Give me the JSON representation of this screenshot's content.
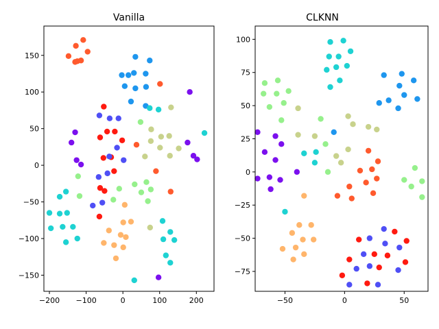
{
  "chart_data": [
    {
      "type": "scatter",
      "title": "Vanilla",
      "xlabel": "",
      "ylabel": "",
      "xlim": [
        -215,
        248
      ],
      "ylim": [
        -172,
        190
      ],
      "x_ticks": [
        -200,
        -100,
        0,
        100,
        200
      ],
      "y_ticks": [
        -150,
        -100,
        -50,
        0,
        50,
        100,
        150
      ],
      "x_tick_labels": [
        "−200",
        "−100",
        "0",
        "100",
        "200"
      ],
      "y_tick_labels": [
        "−150",
        "−100",
        "−50",
        "0",
        "50",
        "100",
        "150"
      ],
      "grid": false,
      "points": [
        {
          "x": -124,
          "y": 142,
          "color": "#ff5a2d"
        },
        {
          "x": -108,
          "y": 171,
          "color": "#ff5a2d"
        },
        {
          "x": -128,
          "y": 163,
          "color": "#ff5a2d"
        },
        {
          "x": -148,
          "y": 149,
          "color": "#ff5a2d"
        },
        {
          "x": -130,
          "y": 141,
          "color": "#ff5a2d"
        },
        {
          "x": -114,
          "y": 143,
          "color": "#ff5a2d"
        },
        {
          "x": -96,
          "y": 155,
          "color": "#ff5a2d"
        },
        {
          "x": 101,
          "y": 111,
          "color": "#ff5a2d"
        },
        {
          "x": 130,
          "y": -36,
          "color": "#ff5a2d"
        },
        {
          "x": 90,
          "y": -8,
          "color": "#ff5a2d"
        },
        {
          "x": 37,
          "y": 28,
          "color": "#ff5a2d"
        },
        {
          "x": 34,
          "y": 148,
          "color": "#1e96ee"
        },
        {
          "x": 73,
          "y": 143,
          "color": "#1e96ee"
        },
        {
          "x": 30,
          "y": 126,
          "color": "#1e96ee"
        },
        {
          "x": 15,
          "y": 123,
          "color": "#1e96ee"
        },
        {
          "x": -3,
          "y": 123,
          "color": "#1e96ee"
        },
        {
          "x": 62,
          "y": 125,
          "color": "#1e96ee"
        },
        {
          "x": 5,
          "y": 108,
          "color": "#1e96ee"
        },
        {
          "x": 34,
          "y": 105,
          "color": "#1e96ee"
        },
        {
          "x": 63,
          "y": 107,
          "color": "#1e96ee"
        },
        {
          "x": 22,
          "y": 87,
          "color": "#1e96ee"
        },
        {
          "x": 62,
          "y": 81,
          "color": "#1e96ee"
        },
        {
          "x": -52,
          "y": 80,
          "color": "#ff1a10"
        },
        {
          "x": -43,
          "y": 46,
          "color": "#ff1a10"
        },
        {
          "x": -22,
          "y": 46,
          "color": "#ff1a10"
        },
        {
          "x": -62,
          "y": 38,
          "color": "#ff1a10"
        },
        {
          "x": -2,
          "y": 34,
          "color": "#ff1a10"
        },
        {
          "x": -53,
          "y": 10,
          "color": "#ff1a10"
        },
        {
          "x": -32,
          "y": 11,
          "color": "#ff1a10"
        },
        {
          "x": -24,
          "y": -8,
          "color": "#ff1a10"
        },
        {
          "x": -62,
          "y": -31,
          "color": "#ff1a10"
        },
        {
          "x": -50,
          "y": -35,
          "color": "#ff1a10"
        },
        {
          "x": -64,
          "y": -70,
          "color": "#ff1a10"
        },
        {
          "x": -130,
          "y": 45,
          "color": "#7b10ee"
        },
        {
          "x": -140,
          "y": 31,
          "color": "#7b10ee"
        },
        {
          "x": -126,
          "y": 7,
          "color": "#7b10ee"
        },
        {
          "x": -114,
          "y": 1,
          "color": "#7b10ee"
        },
        {
          "x": 182,
          "y": 100,
          "color": "#7b10ee"
        },
        {
          "x": 176,
          "y": 31,
          "color": "#7b10ee"
        },
        {
          "x": 192,
          "y": 13,
          "color": "#7b10ee"
        },
        {
          "x": 202,
          "y": 8,
          "color": "#7b10ee"
        },
        {
          "x": 97,
          "y": -153,
          "color": "#7b10ee"
        },
        {
          "x": -64,
          "y": 68,
          "color": "#4f4ff5"
        },
        {
          "x": -36,
          "y": 64,
          "color": "#4f4ff5"
        },
        {
          "x": -12,
          "y": 64,
          "color": "#4f4ff5"
        },
        {
          "x": -16,
          "y": 24,
          "color": "#4f4ff5"
        },
        {
          "x": -37,
          "y": 12,
          "color": "#4f4ff5"
        },
        {
          "x": 2,
          "y": 7,
          "color": "#4f4ff5"
        },
        {
          "x": -42,
          "y": -11,
          "color": "#4f4ff5"
        },
        {
          "x": -66,
          "y": -16,
          "color": "#4f4ff5"
        },
        {
          "x": -56,
          "y": -51,
          "color": "#4f4ff5"
        },
        {
          "x": -82,
          "y": -55,
          "color": "#4f4ff5"
        },
        {
          "x": -200,
          "y": -65,
          "color": "#1ed2d2"
        },
        {
          "x": -172,
          "y": -43,
          "color": "#1ed2d2"
        },
        {
          "x": -155,
          "y": -36,
          "color": "#1ed2d2"
        },
        {
          "x": -172,
          "y": -66,
          "color": "#1ed2d2"
        },
        {
          "x": -152,
          "y": -65,
          "color": "#1ed2d2"
        },
        {
          "x": -196,
          "y": -86,
          "color": "#1ed2d2"
        },
        {
          "x": -164,
          "y": -84,
          "color": "#1ed2d2"
        },
        {
          "x": -136,
          "y": -84,
          "color": "#1ed2d2"
        },
        {
          "x": -124,
          "y": -100,
          "color": "#1ed2d2"
        },
        {
          "x": -155,
          "y": -105,
          "color": "#1ed2d2"
        },
        {
          "x": 73,
          "y": 78,
          "color": "#1ed2d2"
        },
        {
          "x": 97,
          "y": 76,
          "color": "#1ed2d2"
        },
        {
          "x": 222,
          "y": 44,
          "color": "#1ed2d2"
        },
        {
          "x": 108,
          "y": -76,
          "color": "#1ed2d2"
        },
        {
          "x": 129,
          "y": -91,
          "color": "#1ed2d2"
        },
        {
          "x": 110,
          "y": -101,
          "color": "#1ed2d2"
        },
        {
          "x": 140,
          "y": -102,
          "color": "#1ed2d2"
        },
        {
          "x": 117,
          "y": -123,
          "color": "#1ed2d2"
        },
        {
          "x": 129,
          "y": -133,
          "color": "#1ed2d2"
        },
        {
          "x": 31,
          "y": -157,
          "color": "#1ed2d2"
        },
        {
          "x": -122,
          "y": -15,
          "color": "#96f08c"
        },
        {
          "x": -118,
          "y": -42,
          "color": "#96f08c"
        },
        {
          "x": -26,
          "y": -47,
          "color": "#96f08c"
        },
        {
          "x": -10,
          "y": -32,
          "color": "#96f08c"
        },
        {
          "x": 48,
          "y": 59,
          "color": "#96f08c"
        },
        {
          "x": 32,
          "y": -26,
          "color": "#96f08c"
        },
        {
          "x": 64,
          "y": -23,
          "color": "#96f08c"
        },
        {
          "x": 50,
          "y": -37,
          "color": "#96f08c"
        },
        {
          "x": 76,
          "y": -33,
          "color": "#96f08c"
        },
        {
          "x": 68,
          "y": -49,
          "color": "#96f08c"
        },
        {
          "x": 131,
          "y": 79,
          "color": "#c8d28c"
        },
        {
          "x": 77,
          "y": 49,
          "color": "#c8d28c"
        },
        {
          "x": 104,
          "y": 39,
          "color": "#c8d28c"
        },
        {
          "x": 126,
          "y": 40,
          "color": "#c8d28c"
        },
        {
          "x": 76,
          "y": 33,
          "color": "#c8d28c"
        },
        {
          "x": 101,
          "y": 24,
          "color": "#c8d28c"
        },
        {
          "x": 152,
          "y": 23,
          "color": "#c8d28c"
        },
        {
          "x": 60,
          "y": 12,
          "color": "#c8d28c"
        },
        {
          "x": 128,
          "y": 13,
          "color": "#c8d28c"
        },
        {
          "x": 74,
          "y": -85,
          "color": "#c8d28c"
        },
        {
          "x": 5,
          "y": -54,
          "color": "#ffb56b"
        },
        {
          "x": 1,
          "y": -78,
          "color": "#ffb56b"
        },
        {
          "x": 22,
          "y": -77,
          "color": "#ffb56b"
        },
        {
          "x": -38,
          "y": -89,
          "color": "#ffb56b"
        },
        {
          "x": -6,
          "y": -95,
          "color": "#ffb56b"
        },
        {
          "x": 8,
          "y": -98,
          "color": "#ffb56b"
        },
        {
          "x": -52,
          "y": -106,
          "color": "#ffb56b"
        },
        {
          "x": -24,
          "y": -109,
          "color": "#ffb56b"
        },
        {
          "x": 1,
          "y": -112,
          "color": "#ffb56b"
        },
        {
          "x": -19,
          "y": -127,
          "color": "#ffb56b"
        }
      ]
    },
    {
      "type": "scatter",
      "title": "CLKNN",
      "xlabel": "",
      "ylabel": "",
      "xlim": [
        -75,
        70
      ],
      "ylim": [
        -90,
        110
      ],
      "x_ticks": [
        -50,
        0,
        50
      ],
      "y_ticks": [
        -75,
        -50,
        -25,
        0,
        25,
        50,
        75,
        100
      ],
      "x_tick_labels": [
        "−50",
        "0",
        "50"
      ],
      "y_tick_labels": [
        "−75",
        "−50",
        "−25",
        "0",
        "25",
        "50",
        "75",
        "100"
      ],
      "grid": false,
      "points": [
        {
          "x": -12,
          "y": 98,
          "color": "#1ed2d2"
        },
        {
          "x": -1,
          "y": 99,
          "color": "#1ed2d2"
        },
        {
          "x": 5,
          "y": 91,
          "color": "#1ed2d2"
        },
        {
          "x": -13,
          "y": 87,
          "color": "#1ed2d2"
        },
        {
          "x": -5,
          "y": 87,
          "color": "#1ed2d2"
        },
        {
          "x": -7,
          "y": 79,
          "color": "#1ed2d2"
        },
        {
          "x": 2,
          "y": 80,
          "color": "#1ed2d2"
        },
        {
          "x": -15,
          "y": 77,
          "color": "#1ed2d2"
        },
        {
          "x": -4,
          "y": 69,
          "color": "#1ed2d2"
        },
        {
          "x": -12,
          "y": 64,
          "color": "#1ed2d2"
        },
        {
          "x": -25,
          "y": 7,
          "color": "#1ed2d2"
        },
        {
          "x": -24,
          "y": 15,
          "color": "#1ed2d2"
        },
        {
          "x": -34,
          "y": 14,
          "color": "#1ed2d2"
        },
        {
          "x": -50,
          "y": -30,
          "color": "#1ed2d2"
        },
        {
          "x": 33,
          "y": 73,
          "color": "#1e96ee"
        },
        {
          "x": 48,
          "y": 74,
          "color": "#1e96ee"
        },
        {
          "x": 58,
          "y": 69,
          "color": "#1e96ee"
        },
        {
          "x": 46,
          "y": 65,
          "color": "#1e96ee"
        },
        {
          "x": 50,
          "y": 58,
          "color": "#1e96ee"
        },
        {
          "x": 37,
          "y": 54,
          "color": "#1e96ee"
        },
        {
          "x": 61,
          "y": 55,
          "color": "#1e96ee"
        },
        {
          "x": 29,
          "y": 52,
          "color": "#1e96ee"
        },
        {
          "x": 45,
          "y": 48,
          "color": "#1e96ee"
        },
        {
          "x": -9,
          "y": 30,
          "color": "#1e96ee"
        },
        {
          "x": -67,
          "y": 67,
          "color": "#96f08c"
        },
        {
          "x": -56,
          "y": 69,
          "color": "#96f08c"
        },
        {
          "x": -68,
          "y": 59,
          "color": "#96f08c"
        },
        {
          "x": -57,
          "y": 59,
          "color": "#96f08c"
        },
        {
          "x": -47,
          "y": 61,
          "color": "#96f08c"
        },
        {
          "x": -51,
          "y": 52,
          "color": "#96f08c"
        },
        {
          "x": -63,
          "y": 49,
          "color": "#96f08c"
        },
        {
          "x": -20,
          "y": 40,
          "color": "#96f08c"
        },
        {
          "x": -53,
          "y": 39,
          "color": "#96f08c"
        },
        {
          "x": -16,
          "y": 21,
          "color": "#96f08c"
        },
        {
          "x": -14,
          "y": 0,
          "color": "#96f08c"
        },
        {
          "x": 59,
          "y": 3,
          "color": "#96f08c"
        },
        {
          "x": 50,
          "y": -6,
          "color": "#96f08c"
        },
        {
          "x": 65,
          "y": -7,
          "color": "#96f08c"
        },
        {
          "x": 56,
          "y": -11,
          "color": "#96f08c"
        },
        {
          "x": 65,
          "y": -19,
          "color": "#96f08c"
        },
        {
          "x": -39,
          "y": 48,
          "color": "#c8d28c"
        },
        {
          "x": 3,
          "y": 42,
          "color": "#c8d28c"
        },
        {
          "x": 7,
          "y": 36,
          "color": "#c8d28c"
        },
        {
          "x": 20,
          "y": 34,
          "color": "#c8d28c"
        },
        {
          "x": 27,
          "y": 32,
          "color": "#c8d28c"
        },
        {
          "x": -39,
          "y": 28,
          "color": "#c8d28c"
        },
        {
          "x": -25,
          "y": 27,
          "color": "#c8d28c"
        },
        {
          "x": 3,
          "y": 17,
          "color": "#c8d28c"
        },
        {
          "x": -7,
          "y": 12,
          "color": "#c8d28c"
        },
        {
          "x": -3,
          "y": 7,
          "color": "#c8d28c"
        },
        {
          "x": -73,
          "y": 30,
          "color": "#7b10ee"
        },
        {
          "x": -58,
          "y": 27,
          "color": "#7b10ee"
        },
        {
          "x": -53,
          "y": 21,
          "color": "#7b10ee"
        },
        {
          "x": -67,
          "y": 15,
          "color": "#7b10ee"
        },
        {
          "x": -58,
          "y": 9,
          "color": "#7b10ee"
        },
        {
          "x": -40,
          "y": 0,
          "color": "#7b10ee"
        },
        {
          "x": -73,
          "y": -5,
          "color": "#7b10ee"
        },
        {
          "x": -63,
          "y": -4,
          "color": "#7b10ee"
        },
        {
          "x": -54,
          "y": -6,
          "color": "#7b10ee"
        },
        {
          "x": -62,
          "y": -13,
          "color": "#7b10ee"
        },
        {
          "x": 20,
          "y": 16,
          "color": "#ff5a2d"
        },
        {
          "x": 28,
          "y": 8,
          "color": "#ff5a2d"
        },
        {
          "x": 13,
          "y": 1,
          "color": "#ff5a2d"
        },
        {
          "x": 23,
          "y": 2,
          "color": "#ff5a2d"
        },
        {
          "x": 18,
          "y": -8,
          "color": "#ff5a2d"
        },
        {
          "x": 27,
          "y": -5,
          "color": "#ff5a2d"
        },
        {
          "x": 4,
          "y": -11,
          "color": "#ff5a2d"
        },
        {
          "x": -6,
          "y": -18,
          "color": "#ff5a2d"
        },
        {
          "x": 24,
          "y": -16,
          "color": "#ff5a2d"
        },
        {
          "x": 6,
          "y": -20,
          "color": "#ff5a2d"
        },
        {
          "x": -34,
          "y": -18,
          "color": "#ffb56b"
        },
        {
          "x": -38,
          "y": -40,
          "color": "#ffb56b"
        },
        {
          "x": -28,
          "y": -40,
          "color": "#ffb56b"
        },
        {
          "x": -44,
          "y": -46,
          "color": "#ffb56b"
        },
        {
          "x": -35,
          "y": -51,
          "color": "#ffb56b"
        },
        {
          "x": -26,
          "y": -51,
          "color": "#ffb56b"
        },
        {
          "x": -52,
          "y": -58,
          "color": "#ffb56b"
        },
        {
          "x": -41,
          "y": -57,
          "color": "#ffb56b"
        },
        {
          "x": -34,
          "y": -62,
          "color": "#ffb56b"
        },
        {
          "x": -43,
          "y": -66,
          "color": "#ffb56b"
        },
        {
          "x": 12,
          "y": -51,
          "color": "#ff1a10"
        },
        {
          "x": 42,
          "y": -45,
          "color": "#ff1a10"
        },
        {
          "x": 52,
          "y": -52,
          "color": "#ff1a10"
        },
        {
          "x": 25,
          "y": -62,
          "color": "#ff1a10"
        },
        {
          "x": 36,
          "y": -63,
          "color": "#ff1a10"
        },
        {
          "x": 4,
          "y": -66,
          "color": "#ff1a10"
        },
        {
          "x": 51,
          "y": -68,
          "color": "#ff1a10"
        },
        {
          "x": 29,
          "y": -72,
          "color": "#ff1a10"
        },
        {
          "x": -2,
          "y": -78,
          "color": "#ff1a10"
        },
        {
          "x": 19,
          "y": -84,
          "color": "#ff1a10"
        },
        {
          "x": 33,
          "y": -43,
          "color": "#4f4ff5"
        },
        {
          "x": 21,
          "y": -50,
          "color": "#4f4ff5"
        },
        {
          "x": 34,
          "y": -54,
          "color": "#4f4ff5"
        },
        {
          "x": 46,
          "y": -57,
          "color": "#4f4ff5"
        },
        {
          "x": 16,
          "y": -62,
          "color": "#4f4ff5"
        },
        {
          "x": 21,
          "y": -71,
          "color": "#4f4ff5"
        },
        {
          "x": 10,
          "y": -73,
          "color": "#4f4ff5"
        },
        {
          "x": 45,
          "y": -74,
          "color": "#4f4ff5"
        },
        {
          "x": 4,
          "y": -85,
          "color": "#4f4ff5"
        },
        {
          "x": 28,
          "y": -85,
          "color": "#4f4ff5"
        }
      ]
    }
  ]
}
